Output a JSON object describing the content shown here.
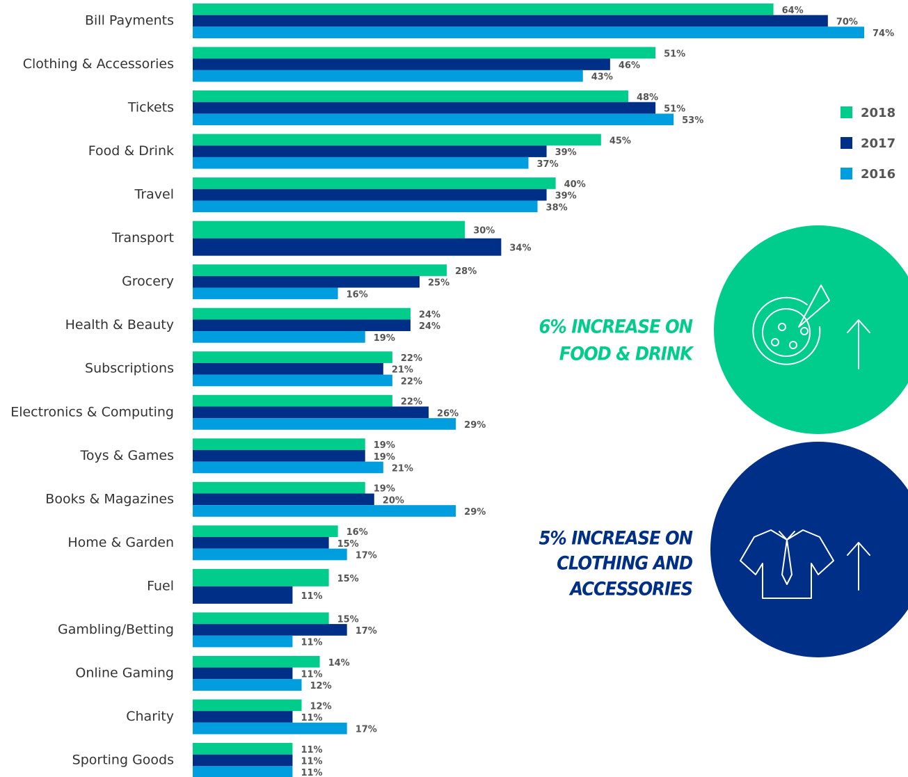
{
  "chart_data": {
    "type": "bar",
    "orientation": "horizontal",
    "categories": [
      "Bill Payments",
      "Clothing & Accessories",
      "Tickets",
      "Food & Drink",
      "Travel",
      "Transport",
      "Grocery",
      "Health & Beauty",
      "Subscriptions",
      "Electronics & Computing",
      "Toys & Games",
      "Books & Magazines",
      "Home & Garden",
      "Fuel",
      "Gambling/Betting",
      "Online Gaming",
      "Charity",
      "Sporting Goods"
    ],
    "series": [
      {
        "name": "2018",
        "color": "#00cc8c",
        "values": [
          64,
          51,
          48,
          45,
          40,
          30,
          28,
          24,
          22,
          22,
          19,
          19,
          16,
          15,
          15,
          14,
          12,
          11
        ],
        "value_labels": [
          "64%",
          "51%",
          "48%",
          "45%",
          "40%",
          "30%",
          "28%",
          "24%",
          "22%",
          "22%",
          "19%",
          "19%",
          "16%",
          "15%",
          "15%",
          "14%",
          "12%",
          "11%"
        ]
      },
      {
        "name": "2017",
        "color": "#002f87",
        "values": [
          70,
          46,
          51,
          39,
          39,
          34,
          25,
          24,
          21,
          26,
          19,
          20,
          15,
          11,
          17,
          11,
          11,
          11
        ],
        "value_labels": [
          "70%",
          "46%",
          "51%",
          "39%",
          "39%",
          "34%",
          "25%",
          "24%",
          "21%",
          "26%",
          "19%",
          "20%",
          "15%",
          "11%",
          "17%",
          "11%",
          "11%",
          "11%"
        ]
      },
      {
        "name": "2016",
        "color": "#009ddf",
        "values": [
          74,
          43,
          53,
          37,
          38,
          null,
          16,
          19,
          22,
          29,
          21,
          29,
          17,
          null,
          11,
          12,
          17,
          11
        ],
        "value_labels": [
          "74%",
          "43%",
          "53%",
          "37%",
          "38%",
          null,
          "16%",
          "19%",
          "22%",
          "29%",
          "21%",
          "29%",
          "17%",
          null,
          "11%",
          "12%",
          "17%",
          "11%"
        ]
      }
    ],
    "legend": "right",
    "annotations": [
      {
        "lines": [
          "6% INCREASE ON",
          "FOOD & DRINK"
        ],
        "color": "#00cc8c"
      },
      {
        "lines": [
          "5% INCREASE ON",
          "CLOTHING AND",
          "ACCESSORIES"
        ],
        "color": "#002f87"
      }
    ]
  }
}
